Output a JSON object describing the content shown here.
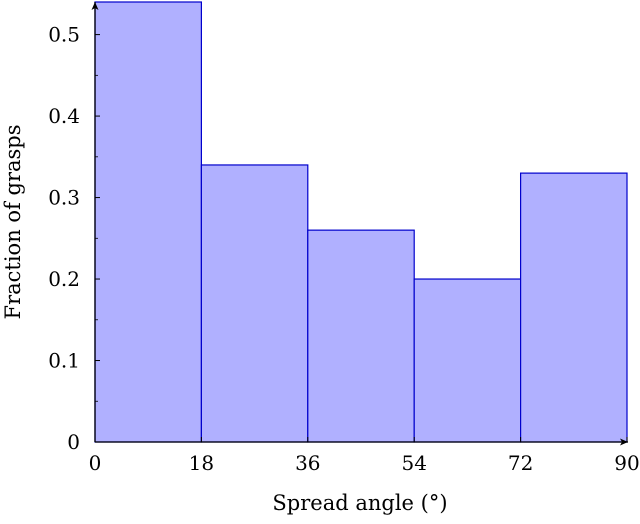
{
  "chart_data": {
    "type": "bar",
    "subtype": "histogram",
    "bins": [
      {
        "x0": 0,
        "x1": 18,
        "value": 0.54
      },
      {
        "x0": 18,
        "x1": 36,
        "value": 0.34
      },
      {
        "x0": 36,
        "x1": 54,
        "value": 0.26
      },
      {
        "x0": 54,
        "x1": 72,
        "value": 0.2
      },
      {
        "x0": 72,
        "x1": 90,
        "value": 0.33
      }
    ],
    "xlabel": "Spread angle (°)",
    "ylabel": "Fraction of grasps",
    "xlim": [
      0,
      90
    ],
    "ylim": [
      0,
      0.54
    ],
    "xticks": [
      0,
      18,
      36,
      54,
      72,
      90
    ],
    "xtick_labels": [
      "0",
      "18",
      "36",
      "54",
      "72",
      "90"
    ],
    "yticks": [
      0,
      0.1,
      0.2,
      0.3,
      0.4,
      0.5
    ],
    "ytick_labels": [
      "0",
      "0.1",
      "0.2",
      "0.3",
      "0.4",
      "0.5"
    ],
    "grid": false,
    "colors": {
      "bar_fill": "#b0b0ff",
      "bar_stroke": "#0000cc",
      "axis": "#000000"
    }
  }
}
